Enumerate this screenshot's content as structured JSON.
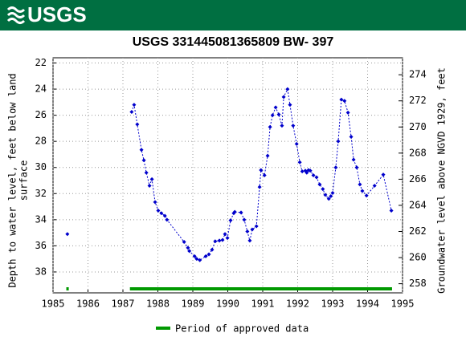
{
  "header": {
    "logo": "USGS"
  },
  "chart_data": {
    "type": "line",
    "title": "USGS 331445081365809 BW- 397",
    "y_label": [
      "Depth to water level, feet below land",
      "surface"
    ],
    "y2_label": "Groundwater level above NGVD 1929, feet",
    "xlim": [
      1985,
      1995
    ],
    "xticks": [
      1985,
      1986,
      1987,
      1988,
      1989,
      1990,
      1991,
      1992,
      1993,
      1994,
      1995
    ],
    "ylim": [
      21.6,
      39.6
    ],
    "yticks": [
      22,
      24,
      26,
      28,
      30,
      32,
      34,
      36,
      38
    ],
    "y_inverted": true,
    "y2lim": [
      275.3,
      257.3
    ],
    "y2ticks": [
      258,
      260,
      262,
      264,
      266,
      268,
      270,
      272,
      274
    ],
    "series": [
      {
        "name": "Depth to water level",
        "color": "#0000cc",
        "x": [
          1985.41,
          null,
          1987.25,
          1987.32,
          1987.41,
          1987.53,
          1987.6,
          1987.67,
          1987.76,
          1987.83,
          1987.92,
          1988.01,
          1988.1,
          1988.2,
          1988.26,
          1988.75,
          1988.86,
          1988.9,
          1989.05,
          1989.11,
          1989.2,
          1989.37,
          1989.46,
          1989.55,
          1989.64,
          1989.76,
          1989.85,
          1989.92,
          1989.99,
          1990.08,
          1990.17,
          1990.2,
          1990.38,
          1990.47,
          1990.56,
          1990.63,
          1990.7,
          1990.82,
          1990.91,
          1990.95,
          1991.05,
          1991.14,
          1991.21,
          1991.28,
          1991.37,
          1991.46,
          1991.55,
          1991.6,
          1991.71,
          1991.78,
          1991.87,
          1991.97,
          1992.06,
          1992.13,
          1992.22,
          1992.26,
          1992.31,
          1992.36,
          1992.45,
          1992.54,
          1992.63,
          1992.72,
          1992.79,
          1992.89,
          1992.95,
          1993.0,
          1993.09,
          1993.16,
          1993.25,
          1993.34,
          1993.44,
          1993.53,
          1993.6,
          1993.69,
          1993.78,
          1993.85,
          1993.97,
          1994.2,
          1994.45,
          1994.68
        ],
        "values": [
          35.1,
          null,
          25.75,
          25.2,
          26.7,
          28.65,
          29.45,
          30.4,
          31.4,
          30.9,
          32.65,
          33.3,
          33.5,
          33.7,
          34.0,
          35.7,
          36.15,
          36.4,
          36.8,
          37.0,
          37.1,
          36.8,
          36.65,
          36.3,
          35.65,
          35.6,
          35.55,
          35.1,
          35.4,
          34.05,
          33.5,
          33.4,
          33.45,
          34.0,
          34.9,
          35.6,
          34.75,
          34.5,
          31.5,
          30.2,
          30.6,
          29.1,
          26.9,
          26.0,
          25.4,
          25.95,
          26.8,
          24.6,
          24.0,
          25.2,
          26.8,
          28.2,
          29.6,
          30.3,
          30.25,
          30.4,
          30.2,
          30.25,
          30.6,
          30.75,
          31.3,
          31.65,
          32.1,
          32.4,
          32.2,
          31.95,
          30.0,
          28.0,
          24.8,
          24.9,
          25.8,
          27.65,
          29.4,
          30.0,
          31.3,
          31.8,
          32.15,
          31.4,
          30.55,
          33.3
        ]
      }
    ],
    "approved_periods": {
      "name": "Period of approved data",
      "color": "#009900",
      "ranges": [
        [
          1985.38,
          1985.45
        ],
        [
          1987.2,
          1994.7
        ]
      ]
    }
  }
}
